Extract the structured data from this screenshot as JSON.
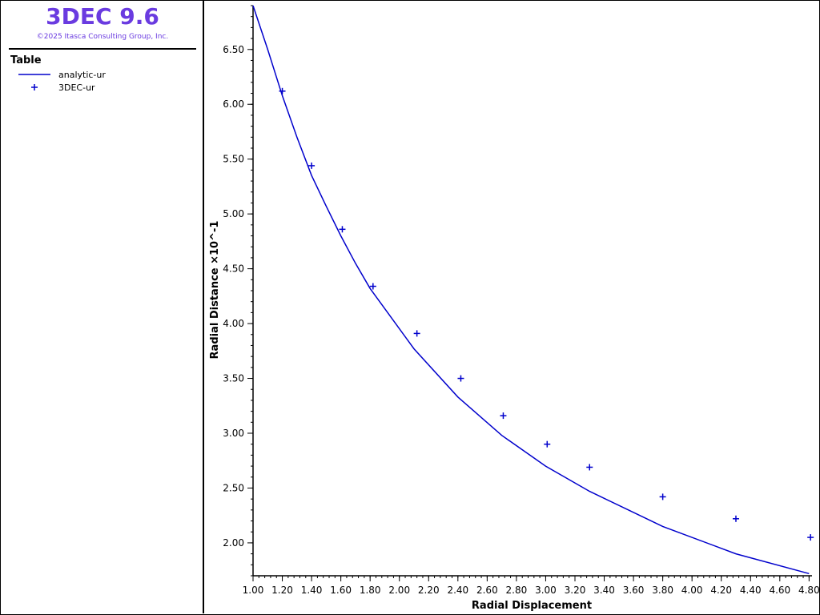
{
  "app": {
    "title": "3DEC 9.6",
    "copyright": "©2025 Itasca Consulting Group, Inc."
  },
  "legend": {
    "heading": "Table",
    "entries": [
      {
        "label": "analytic-ur",
        "symbol": "line",
        "color": "#0000cc"
      },
      {
        "label": "3DEC-ur",
        "symbol": "plus",
        "color": "#0000cc"
      }
    ]
  },
  "colors": {
    "series": "#0000cc",
    "title": "#6a3be0"
  },
  "chart_data": {
    "type": "line",
    "xlabel": "Radial Displacement",
    "ylabel": "Radial Distance ×10^-1",
    "xlim": [
      1.0,
      4.82
    ],
    "ylim": [
      1.7,
      6.9
    ],
    "x_ticks": [
      "1.00",
      "1.20",
      "1.40",
      "1.60",
      "1.80",
      "2.00",
      "2.20",
      "2.40",
      "2.60",
      "2.80",
      "3.00",
      "3.20",
      "3.40",
      "3.60",
      "3.80",
      "4.00",
      "4.20",
      "4.40",
      "4.60",
      "4.80"
    ],
    "y_ticks": [
      "2.00",
      "2.50",
      "3.00",
      "3.50",
      "4.00",
      "4.50",
      "5.00",
      "5.50",
      "6.00",
      "6.50"
    ],
    "grid": false,
    "series": [
      {
        "name": "analytic-ur",
        "kind": "line",
        "x": [
          1.0,
          1.1,
          1.2,
          1.3,
          1.4,
          1.5,
          1.6,
          1.7,
          1.8,
          2.1,
          2.4,
          2.7,
          3.0,
          3.3,
          3.8,
          4.3,
          4.8
        ],
        "y": [
          6.9,
          6.5,
          6.08,
          5.7,
          5.35,
          5.07,
          4.8,
          4.55,
          4.32,
          3.77,
          3.33,
          2.98,
          2.7,
          2.47,
          2.15,
          1.9,
          1.72
        ]
      },
      {
        "name": "3DEC-ur",
        "kind": "scatter",
        "x": [
          1.2,
          1.4,
          1.61,
          1.82,
          2.12,
          2.42,
          2.71,
          3.01,
          3.3,
          3.8,
          4.3,
          4.81
        ],
        "y": [
          6.12,
          5.44,
          4.86,
          4.34,
          3.91,
          3.5,
          3.16,
          2.9,
          2.69,
          2.42,
          2.22,
          2.05
        ]
      }
    ]
  }
}
